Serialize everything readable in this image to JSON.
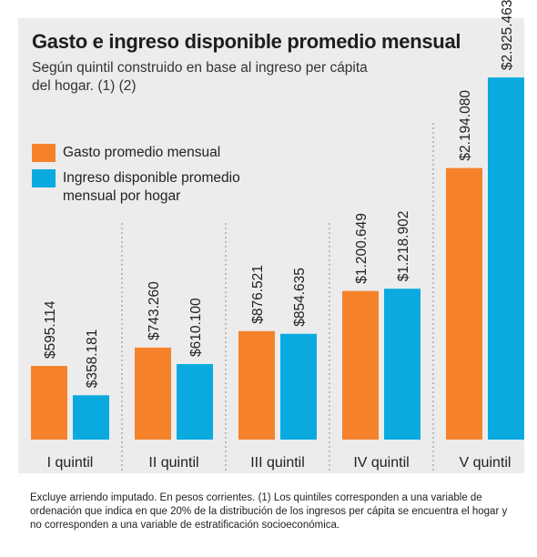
{
  "chart_data": {
    "type": "bar",
    "title": "Gasto e ingreso disponible promedio mensual",
    "subtitle": "Según quintil construido en base al ingreso per cápita del hogar. (1) (2)",
    "categories": [
      "I quintil",
      "II quintil",
      "III quintil",
      "IV quintil",
      "V quintil"
    ],
    "series": [
      {
        "name": "Gasto promedio mensual",
        "color": "#f5822a",
        "values": [
          595114,
          743260,
          876521,
          1200649,
          2194080
        ],
        "labels": [
          "$595.114",
          "$743.260",
          "$876.521",
          "$1.200.649",
          "$2.194.080"
        ]
      },
      {
        "name": "Ingreso disponible promedio mensual por hogar",
        "color": "#0aaae0",
        "values": [
          358181,
          610100,
          854635,
          1218902,
          2925463
        ],
        "labels": [
          "$358.181",
          "$610.100",
          "$854.635",
          "$1.218.902",
          "$2.925.463"
        ]
      }
    ],
    "ylim": [
      0,
      3000000
    ],
    "grid": false,
    "legend_position": "top-left",
    "footnote": "Excluye arriendo imputado. En pesos corrientes. (1) Los quintiles corresponden a una variable de ordenación que indica en que 20% de la distribución de los ingresos per cápita se encuentra el hogar y no corresponden a una variable de estratificación socioeconómica."
  }
}
